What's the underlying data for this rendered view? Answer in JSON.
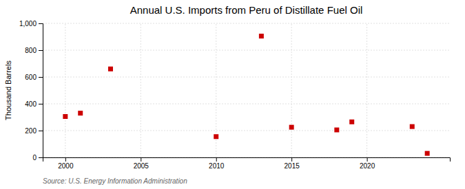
{
  "chart_data": {
    "type": "scatter",
    "title": "Annual U.S. Imports from Peru of Distillate Fuel Oil",
    "y_label": "Thousand Barrels",
    "annotation": "Source: U.S. Energy Information Administration",
    "x": [
      2000,
      2001,
      2003,
      2010,
      2013,
      2015,
      2018,
      2019,
      2023,
      2024
    ],
    "values": [
      305,
      330,
      660,
      155,
      905,
      225,
      205,
      265,
      230,
      30
    ],
    "color": "#cc0000",
    "marker": "square",
    "xlim": [
      1998.5,
      2025.5
    ],
    "ylim": [
      0,
      1000
    ],
    "xticks": [
      2000,
      2005,
      2010,
      2015,
      2020
    ],
    "yticks": [
      0,
      200,
      400,
      600,
      800,
      {
        "value": 1000,
        "label": "1,000"
      }
    ],
    "grid": true
  }
}
